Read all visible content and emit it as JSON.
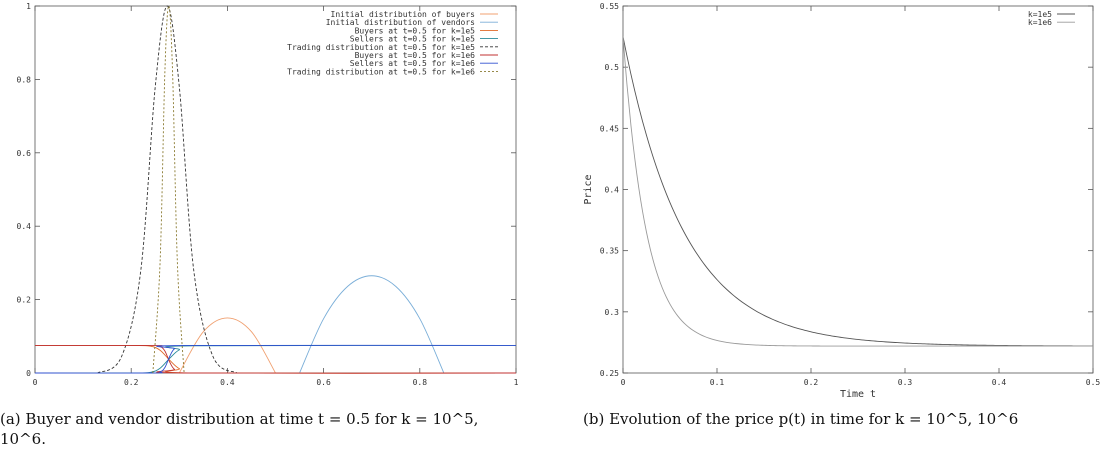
{
  "chart_data": [
    {
      "type": "line",
      "caption": "(a) Buyer and vendor distribution at time t = 0.5 for k = 10^5, 10^6.",
      "xlim": [
        0,
        1
      ],
      "ylim": [
        0,
        1
      ],
      "x_ticks": [
        "0",
        "0.2",
        "0.4",
        "0.6",
        "0.8",
        "1"
      ],
      "y_ticks": [
        "0",
        "0.2",
        "0.4",
        "0.6",
        "0.8",
        "1"
      ],
      "grid": false,
      "legend_position": "top-right",
      "series": [
        {
          "name": "Initial distribution of buyers",
          "color": "#f0a070",
          "dash": "",
          "x": [
            0.3,
            0.35,
            0.4,
            0.45,
            0.5
          ],
          "y": [
            0,
            0.1125,
            0.15,
            0.1125,
            0
          ]
        },
        {
          "name": "Initial distribution of vendors",
          "color": "#7aaed8",
          "dash": "",
          "x": [
            0.55,
            0.6,
            0.65,
            0.7,
            0.75,
            0.8,
            0.85
          ],
          "y": [
            0,
            0.148,
            0.236,
            0.265,
            0.236,
            0.148,
            0
          ]
        },
        {
          "name": "Buyers at t=0.5 for k=1e5",
          "color": "#e06a2a",
          "dash": "",
          "x": [
            0,
            0.2,
            0.24,
            0.26,
            0.28,
            0.3,
            0.33,
            1
          ],
          "y": [
            0.075,
            0.075,
            0.073,
            0.062,
            0.035,
            0.012,
            0,
            0
          ]
        },
        {
          "name": "Sellers at t=0.5 for k=1e5",
          "color": "#2a8a9a",
          "dash": "",
          "x": [
            0,
            0.2,
            0.24,
            0.26,
            0.28,
            0.3,
            0.33,
            1
          ],
          "y": [
            0,
            0,
            0.002,
            0.013,
            0.04,
            0.063,
            0.074,
            0.075
          ]
        },
        {
          "name": "Trading distribution at t=0.5 for k=1e5",
          "color": "#333333",
          "dash": "3,2",
          "x": [
            0.13,
            0.18,
            0.22,
            0.25,
            0.275,
            0.3,
            0.33,
            0.37,
            0.42
          ],
          "y": [
            0,
            0.045,
            0.28,
            0.78,
            1.0,
            0.78,
            0.28,
            0.045,
            0
          ]
        },
        {
          "name": "Buyers at t=0.5 for k=1e6",
          "color": "#c03030",
          "dash": "",
          "x": [
            0,
            0.24,
            0.26,
            0.27,
            0.28,
            0.29,
            0.31,
            1
          ],
          "y": [
            0.075,
            0.075,
            0.072,
            0.06,
            0.03,
            0.01,
            0,
            0
          ]
        },
        {
          "name": "Sellers at t=0.5 for k=1e6",
          "color": "#3050d0",
          "dash": "",
          "x": [
            0,
            0.24,
            0.26,
            0.27,
            0.28,
            0.29,
            0.31,
            1
          ],
          "y": [
            0,
            0,
            0.003,
            0.015,
            0.045,
            0.066,
            0.075,
            0.075
          ]
        },
        {
          "name": "Trading distribution at t=0.5 for k=1e6",
          "color": "#8a7a30",
          "dash": "2,2",
          "x": [
            0.245,
            0.26,
            0.27,
            0.278,
            0.286,
            0.296,
            0.31
          ],
          "y": [
            0,
            0.3,
            0.82,
            1.0,
            0.82,
            0.3,
            0
          ]
        }
      ]
    },
    {
      "type": "line",
      "caption": "(b) Evolution of the price p(t) in time for k = 10^5, 10^6",
      "xlabel": "Time t",
      "ylabel": "Price",
      "xlim": [
        0,
        0.5
      ],
      "ylim": [
        0.25,
        0.55
      ],
      "x_ticks": [
        "0",
        "0.1",
        "0.2",
        "0.3",
        "0.4",
        "0.5"
      ],
      "y_ticks": [
        "0.25",
        "0.3",
        "0.35",
        "0.4",
        "0.45",
        "0.5",
        "0.55"
      ],
      "grid": false,
      "legend_position": "top-right",
      "series": [
        {
          "name": "k=1e5",
          "color": "#555555",
          "p0": 0.525,
          "p_inf": 0.272,
          "tau": 0.065,
          "x": [
            0,
            0.05,
            0.1,
            0.15,
            0.2,
            0.3,
            0.4,
            0.5
          ],
          "y": [
            0.525,
            0.39,
            0.33,
            0.3,
            0.287,
            0.277,
            0.274,
            0.273
          ]
        },
        {
          "name": "k=1e6",
          "color": "#9a9a9a",
          "p0": 0.525,
          "p_inf": 0.272,
          "tau": 0.025,
          "x": [
            0,
            0.025,
            0.05,
            0.1,
            0.15,
            0.2,
            0.3,
            0.5
          ],
          "y": [
            0.525,
            0.365,
            0.306,
            0.277,
            0.273,
            0.272,
            0.272,
            0.272
          ]
        }
      ]
    }
  ]
}
